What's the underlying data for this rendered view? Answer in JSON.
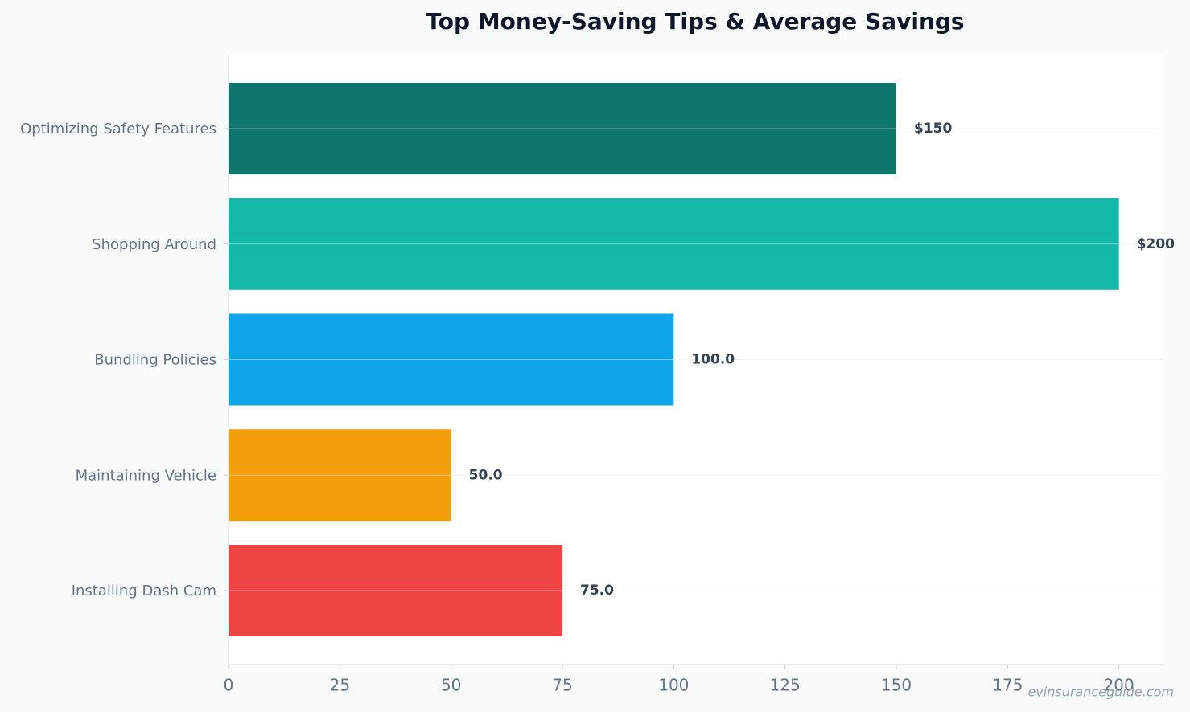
{
  "chart_data": {
    "type": "bar",
    "orientation": "horizontal",
    "title": "Top Money-Saving Tips & Average Savings",
    "categories": [
      "Optimizing Safety Features",
      "Shopping Around",
      "Bundling Policies",
      "Maintaining Vehicle",
      "Installing Dash Cam"
    ],
    "values": [
      150,
      200,
      100,
      50,
      75
    ],
    "value_labels": [
      "$150",
      "$200",
      "100.0",
      "50.0",
      "75.0"
    ],
    "colors": [
      "#0f766e",
      "#14b8a6",
      "#0ea5e9",
      "#f59e0b",
      "#ef4444"
    ],
    "xlim": [
      0,
      210
    ],
    "xticks": [
      0,
      25,
      50,
      75,
      100,
      125,
      150,
      175,
      200
    ],
    "grid": true,
    "watermark": "evinsuranceguide.com"
  }
}
